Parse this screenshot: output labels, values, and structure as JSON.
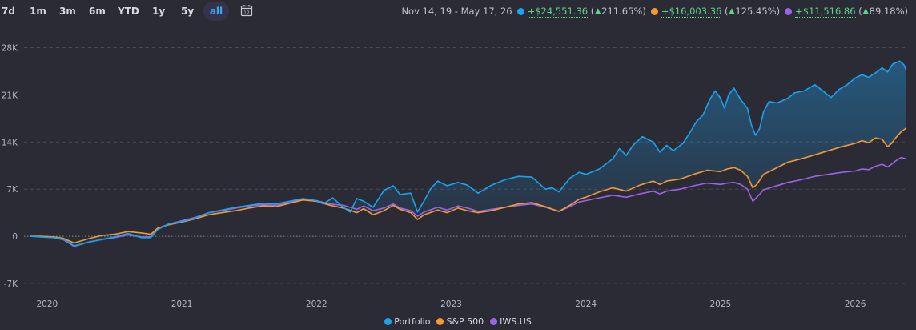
{
  "toolbar": {
    "ranges": [
      "7d",
      "1m",
      "3m",
      "6m",
      "YTD",
      "1y",
      "5y",
      "all"
    ],
    "active": "all",
    "calendar_icon": "calendar-icon"
  },
  "summary": {
    "date_range": "Nov 14, 19 - May 17, 26",
    "items": [
      {
        "color": "#1aa3ef",
        "gain": "+$24,551.36",
        "pct": "211.65%"
      },
      {
        "color": "#f39a32",
        "gain": "+$16,003.36",
        "pct": "125.45%"
      },
      {
        "color": "#9a64e8",
        "gain": "+$11,516.86",
        "pct": "89.18%"
      }
    ]
  },
  "chart_data": {
    "type": "line",
    "title": "",
    "xlabel": "",
    "ylabel": "",
    "y_ticks": [
      "28K",
      "21K",
      "14K",
      "7K",
      "0",
      "-7K"
    ],
    "y_tick_values": [
      28000,
      21000,
      14000,
      7000,
      0,
      -7000
    ],
    "ylim": [
      -7000,
      28000
    ],
    "xlim": [
      2019.87,
      2026.38
    ],
    "x_ticks": [
      "2020",
      "2021",
      "2022",
      "2023",
      "2024",
      "2025",
      "2026"
    ],
    "x_tick_values": [
      2020.0,
      2021.0,
      2022.0,
      2023.0,
      2024.0,
      2025.0,
      2026.0
    ],
    "grid": true,
    "legend_position": "bottom-center",
    "series": [
      {
        "name": "Portfolio",
        "color": "#1aa3ef",
        "filled": true,
        "points": [
          [
            2019.87,
            0
          ],
          [
            2019.95,
            -100
          ],
          [
            2020.05,
            -200
          ],
          [
            2020.12,
            -400
          ],
          [
            2020.2,
            -1400
          ],
          [
            2020.25,
            -1200
          ],
          [
            2020.3,
            -900
          ],
          [
            2020.4,
            -500
          ],
          [
            2020.5,
            -100
          ],
          [
            2020.6,
            400
          ],
          [
            2020.7,
            -200
          ],
          [
            2020.77,
            -200
          ],
          [
            2020.82,
            1000
          ],
          [
            2020.9,
            1800
          ],
          [
            2021.0,
            2200
          ],
          [
            2021.1,
            2700
          ],
          [
            2021.2,
            3500
          ],
          [
            2021.3,
            3900
          ],
          [
            2021.4,
            4300
          ],
          [
            2021.5,
            4600
          ],
          [
            2021.6,
            4900
          ],
          [
            2021.7,
            4800
          ],
          [
            2021.8,
            5200
          ],
          [
            2021.9,
            5600
          ],
          [
            2022.0,
            5300
          ],
          [
            2022.05,
            4800
          ],
          [
            2022.12,
            5700
          ],
          [
            2022.2,
            4300
          ],
          [
            2022.25,
            3600
          ],
          [
            2022.3,
            5600
          ],
          [
            2022.35,
            5200
          ],
          [
            2022.42,
            4300
          ],
          [
            2022.5,
            6800
          ],
          [
            2022.57,
            7500
          ],
          [
            2022.62,
            6200
          ],
          [
            2022.7,
            6400
          ],
          [
            2022.75,
            3600
          ],
          [
            2022.8,
            5300
          ],
          [
            2022.85,
            7100
          ],
          [
            2022.9,
            8200
          ],
          [
            2022.97,
            7500
          ],
          [
            2023.05,
            8000
          ],
          [
            2023.12,
            7600
          ],
          [
            2023.2,
            6400
          ],
          [
            2023.3,
            7600
          ],
          [
            2023.4,
            8400
          ],
          [
            2023.5,
            8900
          ],
          [
            2023.6,
            8800
          ],
          [
            2023.7,
            7000
          ],
          [
            2023.75,
            7200
          ],
          [
            2023.8,
            6600
          ],
          [
            2023.88,
            8600
          ],
          [
            2023.95,
            9500
          ],
          [
            2024.0,
            9200
          ],
          [
            2024.1,
            10000
          ],
          [
            2024.2,
            11500
          ],
          [
            2024.25,
            13000
          ],
          [
            2024.3,
            12000
          ],
          [
            2024.35,
            13500
          ],
          [
            2024.42,
            14800
          ],
          [
            2024.5,
            14000
          ],
          [
            2024.55,
            12500
          ],
          [
            2024.6,
            13500
          ],
          [
            2024.65,
            12700
          ],
          [
            2024.72,
            13800
          ],
          [
            2024.77,
            15300
          ],
          [
            2024.82,
            17000
          ],
          [
            2024.87,
            18000
          ],
          [
            2024.92,
            20300
          ],
          [
            2024.96,
            21600
          ],
          [
            2025.0,
            20500
          ],
          [
            2025.03,
            19000
          ],
          [
            2025.06,
            21000
          ],
          [
            2025.1,
            22000
          ],
          [
            2025.15,
            20300
          ],
          [
            2025.2,
            19000
          ],
          [
            2025.23,
            16500
          ],
          [
            2025.26,
            15000
          ],
          [
            2025.29,
            16000
          ],
          [
            2025.32,
            18500
          ],
          [
            2025.36,
            20000
          ],
          [
            2025.42,
            19800
          ],
          [
            2025.5,
            20500
          ],
          [
            2025.55,
            21300
          ],
          [
            2025.62,
            21600
          ],
          [
            2025.7,
            22500
          ],
          [
            2025.76,
            21600
          ],
          [
            2025.82,
            20600
          ],
          [
            2025.88,
            21800
          ],
          [
            2025.94,
            22500
          ],
          [
            2026.0,
            23500
          ],
          [
            2026.05,
            24000
          ],
          [
            2026.1,
            23600
          ],
          [
            2026.16,
            24400
          ],
          [
            2026.2,
            25000
          ],
          [
            2026.24,
            24400
          ],
          [
            2026.28,
            25600
          ],
          [
            2026.33,
            26000
          ],
          [
            2026.36,
            25500
          ],
          [
            2026.38,
            24600
          ]
        ]
      },
      {
        "name": "S&P 500",
        "color": "#f39a32",
        "filled": false,
        "points": [
          [
            2019.87,
            0
          ],
          [
            2019.95,
            0
          ],
          [
            2020.05,
            -100
          ],
          [
            2020.12,
            -300
          ],
          [
            2020.2,
            -1000
          ],
          [
            2020.25,
            -700
          ],
          [
            2020.3,
            -400
          ],
          [
            2020.4,
            100
          ],
          [
            2020.5,
            300
          ],
          [
            2020.6,
            700
          ],
          [
            2020.7,
            500
          ],
          [
            2020.77,
            300
          ],
          [
            2020.82,
            1200
          ],
          [
            2020.9,
            1700
          ],
          [
            2021.0,
            2100
          ],
          [
            2021.1,
            2600
          ],
          [
            2021.2,
            3200
          ],
          [
            2021.3,
            3500
          ],
          [
            2021.4,
            3800
          ],
          [
            2021.5,
            4200
          ],
          [
            2021.6,
            4500
          ],
          [
            2021.7,
            4400
          ],
          [
            2021.8,
            4900
          ],
          [
            2021.9,
            5400
          ],
          [
            2022.0,
            5200
          ],
          [
            2022.1,
            4600
          ],
          [
            2022.2,
            4200
          ],
          [
            2022.3,
            3500
          ],
          [
            2022.35,
            4100
          ],
          [
            2022.42,
            3200
          ],
          [
            2022.5,
            3800
          ],
          [
            2022.57,
            4600
          ],
          [
            2022.62,
            4000
          ],
          [
            2022.7,
            3500
          ],
          [
            2022.75,
            2500
          ],
          [
            2022.8,
            3200
          ],
          [
            2022.9,
            3900
          ],
          [
            2022.97,
            3500
          ],
          [
            2023.05,
            4200
          ],
          [
            2023.12,
            3800
          ],
          [
            2023.2,
            3500
          ],
          [
            2023.3,
            3800
          ],
          [
            2023.4,
            4300
          ],
          [
            2023.5,
            4800
          ],
          [
            2023.6,
            5000
          ],
          [
            2023.7,
            4400
          ],
          [
            2023.8,
            3700
          ],
          [
            2023.88,
            4600
          ],
          [
            2023.95,
            5500
          ],
          [
            2024.0,
            5800
          ],
          [
            2024.1,
            6600
          ],
          [
            2024.2,
            7200
          ],
          [
            2024.3,
            6700
          ],
          [
            2024.4,
            7600
          ],
          [
            2024.5,
            8200
          ],
          [
            2024.55,
            7700
          ],
          [
            2024.6,
            8200
          ],
          [
            2024.7,
            8500
          ],
          [
            2024.8,
            9200
          ],
          [
            2024.9,
            9800
          ],
          [
            2025.0,
            9600
          ],
          [
            2025.05,
            10000
          ],
          [
            2025.1,
            10200
          ],
          [
            2025.15,
            9800
          ],
          [
            2025.2,
            8900
          ],
          [
            2025.24,
            7200
          ],
          [
            2025.27,
            7700
          ],
          [
            2025.32,
            9200
          ],
          [
            2025.4,
            10000
          ],
          [
            2025.5,
            11000
          ],
          [
            2025.6,
            11500
          ],
          [
            2025.7,
            12100
          ],
          [
            2025.8,
            12700
          ],
          [
            2025.9,
            13300
          ],
          [
            2026.0,
            13800
          ],
          [
            2026.05,
            14200
          ],
          [
            2026.1,
            13900
          ],
          [
            2026.15,
            14600
          ],
          [
            2026.2,
            14400
          ],
          [
            2026.24,
            13300
          ],
          [
            2026.27,
            13800
          ],
          [
            2026.3,
            14600
          ],
          [
            2026.34,
            15500
          ],
          [
            2026.38,
            16100
          ]
        ]
      },
      {
        "name": "IWS.US",
        "color": "#9a64e8",
        "filled": false,
        "points": [
          [
            2019.87,
            0
          ],
          [
            2019.95,
            -50
          ],
          [
            2020.05,
            -200
          ],
          [
            2020.12,
            -500
          ],
          [
            2020.2,
            -1500
          ],
          [
            2020.25,
            -1200
          ],
          [
            2020.3,
            -900
          ],
          [
            2020.4,
            -500
          ],
          [
            2020.5,
            -200
          ],
          [
            2020.6,
            200
          ],
          [
            2020.7,
            -100
          ],
          [
            2020.77,
            -100
          ],
          [
            2020.82,
            1100
          ],
          [
            2020.9,
            1800
          ],
          [
            2021.0,
            2300
          ],
          [
            2021.1,
            2800
          ],
          [
            2021.2,
            3500
          ],
          [
            2021.3,
            3800
          ],
          [
            2021.4,
            4200
          ],
          [
            2021.5,
            4500
          ],
          [
            2021.6,
            4700
          ],
          [
            2021.7,
            4600
          ],
          [
            2021.8,
            5000
          ],
          [
            2021.9,
            5500
          ],
          [
            2022.0,
            5300
          ],
          [
            2022.1,
            4800
          ],
          [
            2022.2,
            4600
          ],
          [
            2022.3,
            4000
          ],
          [
            2022.35,
            4500
          ],
          [
            2022.42,
            3800
          ],
          [
            2022.5,
            4200
          ],
          [
            2022.57,
            4800
          ],
          [
            2022.62,
            4200
          ],
          [
            2022.7,
            3800
          ],
          [
            2022.75,
            3000
          ],
          [
            2022.8,
            3600
          ],
          [
            2022.9,
            4300
          ],
          [
            2022.97,
            3900
          ],
          [
            2023.05,
            4500
          ],
          [
            2023.12,
            4200
          ],
          [
            2023.2,
            3700
          ],
          [
            2023.3,
            4000
          ],
          [
            2023.4,
            4300
          ],
          [
            2023.5,
            4600
          ],
          [
            2023.6,
            4800
          ],
          [
            2023.7,
            4300
          ],
          [
            2023.8,
            3700
          ],
          [
            2023.88,
            4400
          ],
          [
            2023.95,
            5100
          ],
          [
            2024.0,
            5300
          ],
          [
            2024.1,
            5700
          ],
          [
            2024.2,
            6100
          ],
          [
            2024.3,
            5800
          ],
          [
            2024.4,
            6300
          ],
          [
            2024.5,
            6700
          ],
          [
            2024.55,
            6300
          ],
          [
            2024.6,
            6700
          ],
          [
            2024.7,
            7000
          ],
          [
            2024.8,
            7500
          ],
          [
            2024.9,
            7900
          ],
          [
            2025.0,
            7700
          ],
          [
            2025.05,
            7900
          ],
          [
            2025.1,
            8000
          ],
          [
            2025.15,
            7700
          ],
          [
            2025.2,
            7000
          ],
          [
            2025.24,
            5200
          ],
          [
            2025.27,
            5800
          ],
          [
            2025.32,
            6900
          ],
          [
            2025.4,
            7400
          ],
          [
            2025.5,
            8000
          ],
          [
            2025.6,
            8400
          ],
          [
            2025.7,
            8900
          ],
          [
            2025.8,
            9200
          ],
          [
            2025.9,
            9500
          ],
          [
            2026.0,
            9700
          ],
          [
            2026.05,
            10000
          ],
          [
            2026.1,
            9900
          ],
          [
            2026.15,
            10400
          ],
          [
            2026.2,
            10700
          ],
          [
            2026.24,
            10300
          ],
          [
            2026.27,
            10700
          ],
          [
            2026.3,
            11200
          ],
          [
            2026.34,
            11700
          ],
          [
            2026.38,
            11500
          ]
        ]
      }
    ]
  }
}
